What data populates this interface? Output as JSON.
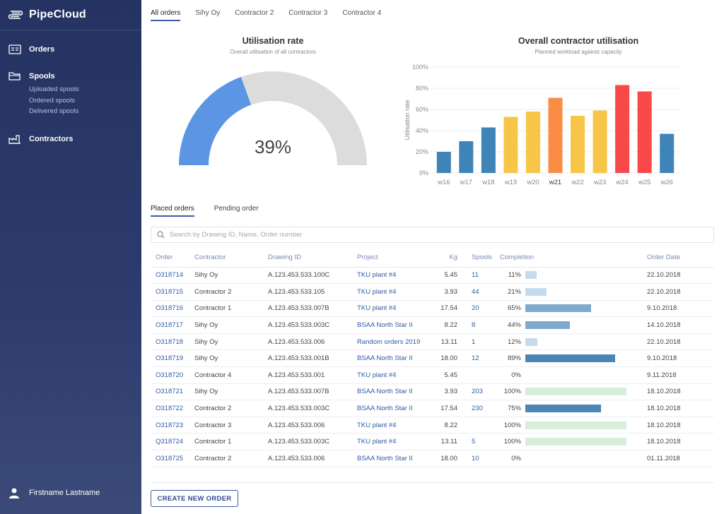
{
  "app": {
    "name": "PipeCloud"
  },
  "sidebar": {
    "items": [
      {
        "label": "Orders"
      },
      {
        "label": "Spools",
        "sub": [
          "Uploaded spools",
          "Ordered spools",
          "Delivered spools"
        ]
      },
      {
        "label": "Contractors"
      }
    ],
    "user": "Firstname Lastname"
  },
  "tabs": [
    "All orders",
    "Sihy Oy",
    "Contractor 2",
    "Contractor 3",
    "Contractor 4"
  ],
  "utilisation": {
    "title": "Utilisation rate",
    "subtitle": "Overall utilisation of all contractors",
    "value_label": "39%",
    "value": 0.39,
    "fill_color": "#5b95e3",
    "track_color": "#dcdcdc"
  },
  "chart_data": {
    "type": "bar",
    "title": "Overall contractor utilisation",
    "subtitle": "Planned workload against capacity",
    "ylabel": "Utilisation rate",
    "ylim": [
      0,
      100
    ],
    "yticks": [
      "0%",
      "20%",
      "40%",
      "60%",
      "80%",
      "100%"
    ],
    "categories": [
      "w16",
      "w17",
      "w18",
      "w19",
      "w20",
      "w21",
      "w22",
      "w23",
      "w24",
      "w25",
      "w26"
    ],
    "values": [
      20,
      30,
      43,
      53,
      58,
      71,
      54,
      59,
      83,
      77,
      37
    ],
    "colors": [
      "#3e84b9",
      "#3e84b9",
      "#3e84b9",
      "#f8c646",
      "#f8c646",
      "#fb8c45",
      "#f8c646",
      "#f8c646",
      "#f84848",
      "#f84848",
      "#3e84b9"
    ],
    "highlight_category": "w21"
  },
  "subtabs": [
    "Placed orders",
    "Pending order"
  ],
  "search": {
    "placeholder": "Search by Drawing ID, Name, Order number"
  },
  "table": {
    "columns": [
      "Order",
      "Contractor",
      "Drawing ID",
      "Project",
      "Kg",
      "Spools",
      "Completion",
      "Order Date"
    ],
    "rows": [
      {
        "order": "O318714",
        "contractor": "Sihy Oy",
        "drawing": "A.123.453.533.100C",
        "project": "TKU plant #4",
        "kg": "5.45",
        "spools": "11",
        "completion": "11%",
        "pct": 11,
        "date": "22.10.2018"
      },
      {
        "order": "O318715",
        "contractor": "Contractor 2",
        "drawing": "A.123.453.533.105",
        "project": "TKU plant #4",
        "kg": "3.93",
        "spools": "44",
        "completion": "21%",
        "pct": 21,
        "date": "22.10.2018"
      },
      {
        "order": "O318716",
        "contractor": "Contractor 1",
        "drawing": "A.123.453.533.007B",
        "project": "TKU plant #4",
        "kg": "17.54",
        "spools": "20",
        "completion": "65%",
        "pct": 65,
        "date": "9.10.2018"
      },
      {
        "order": "O318717",
        "contractor": "Sihy Oy",
        "drawing": "A.123.453.533.003C",
        "project": "BSAA North Star II",
        "kg": "8.22",
        "spools": "8",
        "completion": "44%",
        "pct": 44,
        "date": "14.10.2018"
      },
      {
        "order": "O318718",
        "contractor": "Sihy Oy",
        "drawing": "A.123.453.533.006",
        "project": "Random orders 2019",
        "kg": "13.11",
        "spools": "1",
        "completion": "12%",
        "pct": 12,
        "date": "22.10.2018"
      },
      {
        "order": "O318719",
        "contractor": "Sihy Oy",
        "drawing": "A.123.453.533.001B",
        "project": "BSAA North Star II",
        "kg": "18.00",
        "spools": "12",
        "completion": "89%",
        "pct": 89,
        "date": "9.10.2018"
      },
      {
        "order": "O318720",
        "contractor": "Contractor 4",
        "drawing": "A.123.453.533.001",
        "project": "TKU plant #4",
        "kg": "5.45",
        "spools": "",
        "completion": "0%",
        "pct": 0,
        "date": "9.11.2018"
      },
      {
        "order": "O318721",
        "contractor": "Sihy Oy",
        "drawing": "A.123.453.533.007B",
        "project": "BSAA North Star II",
        "kg": "3.93",
        "spools": "203",
        "completion": "100%",
        "pct": 100,
        "date": "18.10.2018"
      },
      {
        "order": "O318722",
        "contractor": "Contractor 2",
        "drawing": "A.123.453.533.003C",
        "project": "BSAA North Star II",
        "kg": "17.54",
        "spools": "230",
        "completion": "75%",
        "pct": 75,
        "date": "18.10.2018"
      },
      {
        "order": "O318723",
        "contractor": "Contractor 3",
        "drawing": "A.123.453.533.006",
        "project": "TKU plant #4",
        "kg": "8.22",
        "spools": "",
        "completion": "100%",
        "pct": 100,
        "date": "18.10.2018"
      },
      {
        "order": "Q318724",
        "contractor": "Contractor 1",
        "drawing": "A.123.453.533.003C",
        "project": "TKU plant #4",
        "kg": "13.11",
        "spools": "5",
        "completion": "100%",
        "pct": 100,
        "date": "18.10.2018"
      },
      {
        "order": "O318725",
        "contractor": "Contractor 2",
        "drawing": "A.123.453.533.006",
        "project": "BSAA North Star II",
        "kg": "18.00",
        "spools": "10",
        "completion": "0%",
        "pct": 0,
        "date": "01.11.2018"
      }
    ]
  },
  "create_button": "CREATE NEW ORDER"
}
